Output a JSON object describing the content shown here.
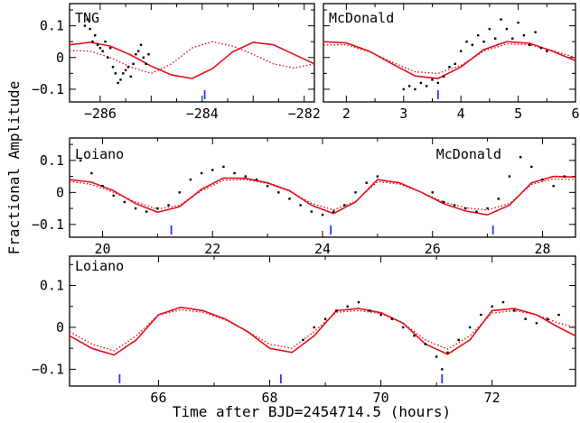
{
  "figure": {
    "xlabel": "Time after BJD=2454714.5 (hours)",
    "ylabel": "Fractional Amplitude"
  },
  "chart_data": [
    {
      "type": "line",
      "panel": "top-left",
      "label": "TNG",
      "xlim": [
        -286.6,
        -281.8
      ],
      "ylim": [
        -0.14,
        0.17
      ],
      "xticks": [
        -286,
        -285,
        -284,
        -283,
        -282
      ],
      "xtick_labels": [
        "−286",
        "",
        "−284",
        "",
        "−282"
      ],
      "yticks": [
        -0.1,
        0,
        0.1
      ],
      "ytick_labels": [
        "−0.1",
        "0",
        "0.1"
      ],
      "markers": [
        -283.95
      ],
      "scatter_points": [
        [
          -286.3,
          0.1
        ],
        [
          -286.25,
          0.12
        ],
        [
          -286.2,
          0.09
        ],
        [
          -286.15,
          0.05
        ],
        [
          -286.1,
          0.07
        ],
        [
          -286.05,
          0.04
        ],
        [
          -286.0,
          0.03
        ],
        [
          -285.95,
          0.02
        ],
        [
          -285.9,
          0.05
        ],
        [
          -285.85,
          0.0
        ],
        [
          -285.8,
          0.03
        ],
        [
          -285.75,
          -0.03
        ],
        [
          -285.7,
          -0.05
        ],
        [
          -285.65,
          -0.08
        ],
        [
          -285.6,
          -0.07
        ],
        [
          -285.55,
          -0.05
        ],
        [
          -285.5,
          -0.04
        ],
        [
          -285.45,
          -0.03
        ],
        [
          -285.4,
          -0.06
        ],
        [
          -285.35,
          -0.02
        ],
        [
          -285.3,
          0.01
        ],
        [
          -285.25,
          0.02
        ],
        [
          -285.2,
          0.04
        ],
        [
          -285.15,
          0.0
        ],
        [
          -285.1,
          -0.02
        ],
        [
          -285.05,
          0.01
        ]
      ],
      "series": [
        {
          "values": [
            [
              -286.6,
              0.04
            ],
            [
              -286.2,
              0.048
            ],
            [
              -285.8,
              0.036
            ],
            [
              -285.4,
              0.008
            ],
            [
              -285.0,
              -0.027
            ],
            [
              -284.6,
              -0.055
            ],
            [
              -284.2,
              -0.066
            ],
            [
              -283.8,
              -0.035
            ],
            [
              -283.4,
              0.018
            ],
            [
              -283.0,
              0.048
            ],
            [
              -282.6,
              0.04
            ],
            [
              -282.2,
              0.01
            ],
            [
              -281.8,
              -0.02
            ]
          ],
          "color": "#e0111a",
          "style": "solid"
        },
        {
          "values": [
            [
              -286.6,
              0.022
            ],
            [
              -286.2,
              0.02
            ],
            [
              -285.8,
              0.0
            ],
            [
              -285.4,
              -0.03
            ],
            [
              -285.0,
              -0.05
            ],
            [
              -284.6,
              -0.02
            ],
            [
              -284.2,
              0.03
            ],
            [
              -283.8,
              0.05
            ],
            [
              -283.4,
              0.036
            ],
            [
              -283.0,
              0.01
            ],
            [
              -282.6,
              -0.02
            ],
            [
              -282.2,
              -0.033
            ],
            [
              -281.8,
              -0.02
            ]
          ],
          "color": "#e0111a",
          "style": "dotted"
        }
      ]
    },
    {
      "type": "line",
      "panel": "top-right",
      "label": "McDonald",
      "xlim": [
        1.6,
        6.0
      ],
      "ylim": [
        -0.14,
        0.17
      ],
      "xticks": [
        2,
        3,
        4,
        5,
        6
      ],
      "xtick_labels": [
        "2",
        "3",
        "4",
        "5",
        "6"
      ],
      "yticks": [
        -0.1,
        0,
        0.1
      ],
      "ytick_labels": [
        "",
        "",
        ""
      ],
      "markers": [
        3.6
      ],
      "scatter_points": [
        [
          3.0,
          -0.1
        ],
        [
          3.1,
          -0.09
        ],
        [
          3.2,
          -0.1
        ],
        [
          3.3,
          -0.08
        ],
        [
          3.4,
          -0.09
        ],
        [
          3.5,
          -0.07
        ],
        [
          3.6,
          -0.08
        ],
        [
          3.7,
          -0.06
        ],
        [
          3.8,
          -0.03
        ],
        [
          3.9,
          -0.02
        ],
        [
          4.0,
          0.02
        ],
        [
          4.1,
          0.05
        ],
        [
          4.2,
          0.04
        ],
        [
          4.3,
          0.07
        ],
        [
          4.4,
          0.05
        ],
        [
          4.5,
          0.09
        ],
        [
          4.6,
          0.06
        ],
        [
          4.7,
          0.12
        ],
        [
          4.8,
          0.09
        ],
        [
          4.9,
          0.06
        ],
        [
          5.0,
          0.11
        ],
        [
          5.1,
          0.07
        ],
        [
          5.2,
          0.04
        ],
        [
          5.3,
          0.08
        ],
        [
          5.4,
          0.03
        ],
        [
          5.5,
          0.02
        ]
      ],
      "series": [
        {
          "values": [
            [
              1.6,
              0.05
            ],
            [
              2.0,
              0.046
            ],
            [
              2.4,
              0.02
            ],
            [
              2.8,
              -0.02
            ],
            [
              3.2,
              -0.058
            ],
            [
              3.6,
              -0.066
            ],
            [
              4.0,
              -0.03
            ],
            [
              4.4,
              0.025
            ],
            [
              4.8,
              0.05
            ],
            [
              5.2,
              0.045
            ],
            [
              5.6,
              0.02
            ],
            [
              6.0,
              -0.01
            ]
          ],
          "color": "#e0111a",
          "style": "solid"
        },
        {
          "values": [
            [
              1.6,
              0.04
            ],
            [
              2.0,
              0.04
            ],
            [
              2.4,
              0.018
            ],
            [
              2.8,
              -0.015
            ],
            [
              3.2,
              -0.045
            ],
            [
              3.6,
              -0.05
            ],
            [
              4.0,
              -0.025
            ],
            [
              4.4,
              0.02
            ],
            [
              4.8,
              0.043
            ],
            [
              5.2,
              0.04
            ],
            [
              5.6,
              0.022
            ],
            [
              6.0,
              0.0
            ]
          ],
          "color": "#e0111a",
          "style": "dotted"
        }
      ]
    },
    {
      "type": "line",
      "panel": "middle",
      "labels": [
        "Loiano",
        "McDonald"
      ],
      "xlim": [
        19.4,
        28.6
      ],
      "ylim": [
        -0.14,
        0.17
      ],
      "xticks": [
        20,
        22,
        24,
        26,
        28
      ],
      "xtick_labels": [
        "20",
        "22",
        "24",
        "26",
        "28"
      ],
      "yticks": [
        -0.1,
        0,
        0.1
      ],
      "ytick_labels": [
        "−0.1",
        "0",
        "0.1"
      ],
      "markers": [
        21.25,
        24.15,
        27.1
      ],
      "scatter_points": [
        [
          19.6,
          0.1
        ],
        [
          19.8,
          0.06
        ],
        [
          20.0,
          0.02
        ],
        [
          20.2,
          -0.01
        ],
        [
          20.4,
          -0.03
        ],
        [
          20.6,
          -0.05
        ],
        [
          20.8,
          -0.06
        ],
        [
          21.0,
          -0.05
        ],
        [
          21.2,
          -0.04
        ],
        [
          21.4,
          0.0
        ],
        [
          21.6,
          0.04
        ],
        [
          21.8,
          0.06
        ],
        [
          22.0,
          0.07
        ],
        [
          22.2,
          0.08
        ],
        [
          22.4,
          0.06
        ],
        [
          22.6,
          0.05
        ],
        [
          22.8,
          0.04
        ],
        [
          23.0,
          0.02
        ],
        [
          23.2,
          0.0
        ],
        [
          23.4,
          -0.02
        ],
        [
          23.6,
          -0.04
        ],
        [
          23.8,
          -0.06
        ],
        [
          24.0,
          -0.07
        ],
        [
          24.2,
          -0.06
        ],
        [
          24.4,
          -0.04
        ],
        [
          24.6,
          0.0
        ],
        [
          24.8,
          0.03
        ],
        [
          25.0,
          0.05
        ],
        [
          26.0,
          0.0
        ],
        [
          26.2,
          -0.03
        ],
        [
          26.4,
          -0.04
        ],
        [
          26.6,
          -0.05
        ],
        [
          26.8,
          -0.06
        ],
        [
          27.0,
          -0.05
        ],
        [
          27.2,
          -0.02
        ],
        [
          27.4,
          0.05
        ],
        [
          27.6,
          0.11
        ],
        [
          27.8,
          0.08
        ],
        [
          28.0,
          0.04
        ],
        [
          28.2,
          0.02
        ],
        [
          28.4,
          0.05
        ]
      ],
      "series": [
        {
          "values": [
            [
              19.4,
              0.04
            ],
            [
              19.8,
              0.032
            ],
            [
              20.2,
              0.005
            ],
            [
              20.6,
              -0.035
            ],
            [
              21.0,
              -0.062
            ],
            [
              21.4,
              -0.045
            ],
            [
              21.8,
              0.01
            ],
            [
              22.2,
              0.045
            ],
            [
              22.6,
              0.044
            ],
            [
              23.0,
              0.03
            ],
            [
              23.4,
              0.005
            ],
            [
              23.8,
              -0.04
            ],
            [
              24.2,
              -0.066
            ],
            [
              24.6,
              -0.03
            ],
            [
              25.0,
              0.04
            ],
            [
              25.4,
              0.03
            ],
            [
              25.8,
              0.0
            ],
            [
              26.2,
              -0.035
            ],
            [
              26.6,
              -0.058
            ],
            [
              27.0,
              -0.07
            ],
            [
              27.4,
              -0.04
            ],
            [
              27.8,
              0.03
            ],
            [
              28.2,
              0.05
            ],
            [
              28.6,
              0.048
            ]
          ],
          "color": "#e0111a",
          "style": "solid"
        },
        {
          "values": [
            [
              19.4,
              0.035
            ],
            [
              19.8,
              0.025
            ],
            [
              20.2,
              0.0
            ],
            [
              20.6,
              -0.03
            ],
            [
              21.0,
              -0.052
            ],
            [
              21.4,
              -0.04
            ],
            [
              21.8,
              0.005
            ],
            [
              22.2,
              0.038
            ],
            [
              22.6,
              0.04
            ],
            [
              23.0,
              0.028
            ],
            [
              23.4,
              0.004
            ],
            [
              23.8,
              -0.034
            ],
            [
              24.2,
              -0.055
            ],
            [
              24.6,
              -0.028
            ],
            [
              25.0,
              0.034
            ],
            [
              25.4,
              0.026
            ],
            [
              25.8,
              0.0
            ],
            [
              26.2,
              -0.03
            ],
            [
              26.6,
              -0.048
            ],
            [
              27.0,
              -0.055
            ],
            [
              27.4,
              -0.035
            ],
            [
              27.8,
              0.025
            ],
            [
              28.2,
              0.042
            ],
            [
              28.6,
              0.04
            ]
          ],
          "color": "#e0111a",
          "style": "dotted"
        }
      ]
    },
    {
      "type": "line",
      "panel": "bottom",
      "label": "Loiano",
      "xlim": [
        64.4,
        73.5
      ],
      "ylim": [
        -0.14,
        0.17
      ],
      "xticks": [
        66,
        68,
        70,
        72
      ],
      "xtick_labels": [
        "66",
        "68",
        "70",
        "72"
      ],
      "yticks": [
        -0.1,
        0,
        0.1
      ],
      "ytick_labels": [
        "−0.1",
        "0",
        "0.1"
      ],
      "markers": [
        65.3,
        68.2,
        71.1
      ],
      "scatter_points": [
        [
          68.6,
          -0.03
        ],
        [
          68.8,
          0.0
        ],
        [
          69.0,
          0.02
        ],
        [
          69.2,
          0.04
        ],
        [
          69.4,
          0.05
        ],
        [
          69.6,
          0.06
        ],
        [
          69.8,
          0.04
        ],
        [
          70.0,
          0.03
        ],
        [
          70.2,
          0.02
        ],
        [
          70.4,
          0.0
        ],
        [
          70.6,
          -0.02
        ],
        [
          70.8,
          -0.04
        ],
        [
          71.0,
          -0.07
        ],
        [
          71.1,
          -0.1
        ],
        [
          71.2,
          -0.06
        ],
        [
          71.4,
          -0.03
        ],
        [
          71.6,
          0.0
        ],
        [
          71.8,
          0.03
        ],
        [
          72.0,
          0.05
        ],
        [
          72.2,
          0.06
        ],
        [
          72.4,
          0.04
        ],
        [
          72.6,
          0.02
        ],
        [
          72.8,
          0.01
        ],
        [
          73.0,
          0.02
        ],
        [
          73.2,
          0.03
        ]
      ],
      "series": [
        {
          "values": [
            [
              64.4,
              -0.02
            ],
            [
              64.8,
              -0.05
            ],
            [
              65.2,
              -0.066
            ],
            [
              65.6,
              -0.03
            ],
            [
              66.0,
              0.03
            ],
            [
              66.4,
              0.048
            ],
            [
              66.8,
              0.04
            ],
            [
              67.2,
              0.02
            ],
            [
              67.6,
              -0.01
            ],
            [
              68.0,
              -0.05
            ],
            [
              68.4,
              -0.06
            ],
            [
              68.8,
              -0.02
            ],
            [
              69.2,
              0.04
            ],
            [
              69.6,
              0.045
            ],
            [
              70.0,
              0.035
            ],
            [
              70.4,
              0.01
            ],
            [
              70.8,
              -0.04
            ],
            [
              71.2,
              -0.064
            ],
            [
              71.6,
              -0.03
            ],
            [
              72.0,
              0.04
            ],
            [
              72.4,
              0.045
            ],
            [
              72.8,
              0.03
            ],
            [
              73.2,
              0.0
            ],
            [
              73.5,
              -0.02
            ]
          ],
          "color": "#e0111a",
          "style": "solid"
        },
        {
          "values": [
            [
              64.4,
              -0.01
            ],
            [
              64.8,
              -0.04
            ],
            [
              65.2,
              -0.056
            ],
            [
              65.6,
              -0.02
            ],
            [
              66.0,
              0.03
            ],
            [
              66.4,
              0.042
            ],
            [
              66.8,
              0.036
            ],
            [
              67.2,
              0.018
            ],
            [
              67.6,
              -0.01
            ],
            [
              68.0,
              -0.04
            ],
            [
              68.4,
              -0.05
            ],
            [
              68.8,
              -0.01
            ],
            [
              69.2,
              0.036
            ],
            [
              69.6,
              0.04
            ],
            [
              70.0,
              0.033
            ],
            [
              70.4,
              0.01
            ],
            [
              70.8,
              -0.03
            ],
            [
              71.2,
              -0.052
            ],
            [
              71.6,
              -0.02
            ],
            [
              72.0,
              0.034
            ],
            [
              72.4,
              0.04
            ],
            [
              72.8,
              0.03
            ],
            [
              73.2,
              0.01
            ],
            [
              73.5,
              0.0
            ]
          ],
          "color": "#e0111a",
          "style": "dotted"
        }
      ]
    }
  ]
}
